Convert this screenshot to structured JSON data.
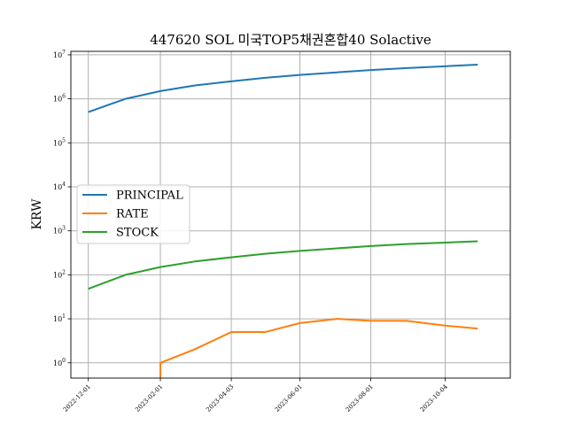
{
  "chart_data": {
    "type": "line",
    "title": "447620 SOL 미국TOP5채권혼합40 Solactive",
    "xlabel": "",
    "ylabel": "KRW",
    "yscale": "log",
    "ylim": [
      0.45,
      12000000
    ],
    "xlim": [
      "2022-11-16",
      "2023-11-29"
    ],
    "grid": true,
    "legend_position": "center-left",
    "x_tick_labels": [
      "2022-12-01",
      "2023-02-01",
      "2023-04-03",
      "2023-06-01",
      "2023-08-01",
      "2023-10-04"
    ],
    "y_ticks": [
      {
        "value": 1,
        "base": "10",
        "exp": "0"
      },
      {
        "value": 10,
        "base": "10",
        "exp": "1"
      },
      {
        "value": 100,
        "base": "10",
        "exp": "2"
      },
      {
        "value": 1000,
        "base": "10",
        "exp": "3"
      },
      {
        "value": 10000,
        "base": "10",
        "exp": "4"
      },
      {
        "value": 100000,
        "base": "10",
        "exp": "5"
      },
      {
        "value": 1000000,
        "base": "10",
        "exp": "6"
      },
      {
        "value": 10000000,
        "base": "10",
        "exp": "7"
      }
    ],
    "series": [
      {
        "name": "PRINCIPAL",
        "color": "#1f77b4",
        "x": [
          "2022-12-01",
          "2023-01-02",
          "2023-02-01",
          "2023-03-02",
          "2023-04-03",
          "2023-05-02",
          "2023-06-01",
          "2023-07-03",
          "2023-08-01",
          "2023-09-01",
          "2023-10-04",
          "2023-11-01"
        ],
        "values": [
          500000,
          1000000,
          1500000,
          2000000,
          2500000,
          3000000,
          3500000,
          4000000,
          4500000,
          5000000,
          5500000,
          6000000
        ]
      },
      {
        "name": "RATE",
        "color": "#ff7f0e",
        "x": [
          "2023-02-01",
          "2023-02-01",
          "2023-03-02",
          "2023-04-03",
          "2023-05-02",
          "2023-06-01",
          "2023-07-03",
          "2023-08-01",
          "2023-09-01",
          "2023-10-04",
          "2023-11-01"
        ],
        "values": [
          0.4,
          1,
          2,
          5,
          5,
          8,
          10,
          9,
          9,
          7,
          6
        ]
      },
      {
        "name": "STOCK",
        "color": "#2ca02c",
        "x": [
          "2022-12-01",
          "2023-01-02",
          "2023-02-01",
          "2023-03-02",
          "2023-04-03",
          "2023-05-02",
          "2023-06-01",
          "2023-07-03",
          "2023-08-01",
          "2023-09-01",
          "2023-10-04",
          "2023-11-01"
        ],
        "values": [
          48,
          100,
          150,
          200,
          250,
          300,
          350,
          400,
          450,
          500,
          540,
          580
        ]
      }
    ]
  }
}
